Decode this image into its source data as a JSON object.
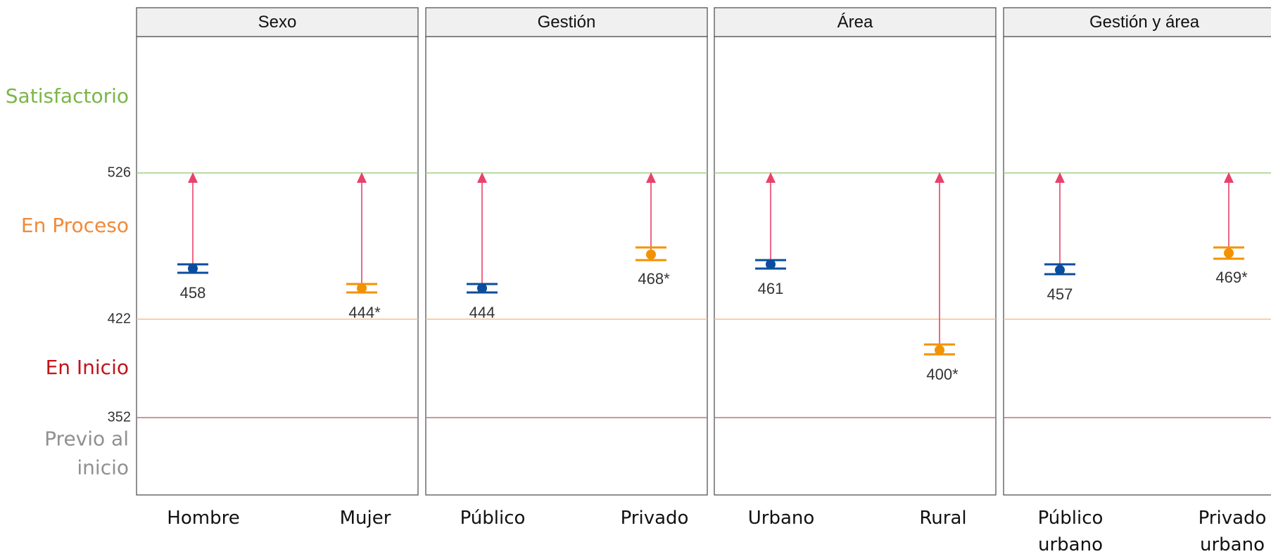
{
  "chart_data": {
    "type": "dumbbell",
    "ylim": [
      297,
      623
    ],
    "levels": [
      {
        "label": "Satisfactorio",
        "color": "#7ab648",
        "center": 580
      },
      {
        "label": "En Proceso",
        "color": "#ef8a3a",
        "center": 488
      },
      {
        "label": "En Inicio",
        "color": "#c0141a",
        "center": 387
      },
      {
        "label": [
          "Previo al",
          "inicio"
        ],
        "color": "#909090",
        "center": 326
      }
    ],
    "thresholds": [
      {
        "value": 526,
        "label": "526",
        "color": "#a6cf82"
      },
      {
        "value": 422,
        "label": "422",
        "color": "#f5bf93"
      },
      {
        "value": 352,
        "label": "352",
        "color": "#b97777"
      }
    ],
    "target": 526,
    "colors": {
      "group_a": "#0a4d9e",
      "group_b": "#f39200",
      "arrow": "#e8426a",
      "panel_border": "#555555",
      "strip_bg": "#f0f0f0"
    },
    "panels": [
      {
        "title": "Sexo",
        "items": [
          {
            "category": [
              "Hombre"
            ],
            "value": 458,
            "ci": [
              455,
              461
            ],
            "label": "458",
            "group": "a"
          },
          {
            "category": [
              "Mujer"
            ],
            "value": 444,
            "ci": [
              441,
              447
            ],
            "label": "444*",
            "group": "b"
          }
        ]
      },
      {
        "title": "Gestión",
        "items": [
          {
            "category": [
              "Público"
            ],
            "value": 444,
            "ci": [
              441,
              447
            ],
            "label": "444",
            "group": "a"
          },
          {
            "category": [
              "Privado"
            ],
            "value": 468,
            "ci": [
              464,
              473
            ],
            "label": "468*",
            "group": "b"
          }
        ]
      },
      {
        "title": "Área",
        "items": [
          {
            "category": [
              "Urbano"
            ],
            "value": 461,
            "ci": [
              458,
              464
            ],
            "label": "461",
            "group": "a"
          },
          {
            "category": [
              "Rural"
            ],
            "value": 400,
            "ci": [
              397,
              404
            ],
            "label": "400*",
            "group": "b"
          }
        ]
      },
      {
        "title": "Gestión y área",
        "items": [
          {
            "category": [
              "Público",
              "urbano"
            ],
            "value": 457,
            "ci": [
              454,
              461
            ],
            "label": "457",
            "group": "a"
          },
          {
            "category": [
              "Privado",
              "urbano"
            ],
            "value": 469,
            "ci": [
              465,
              473
            ],
            "label": "469*",
            "group": "b"
          }
        ]
      }
    ]
  }
}
